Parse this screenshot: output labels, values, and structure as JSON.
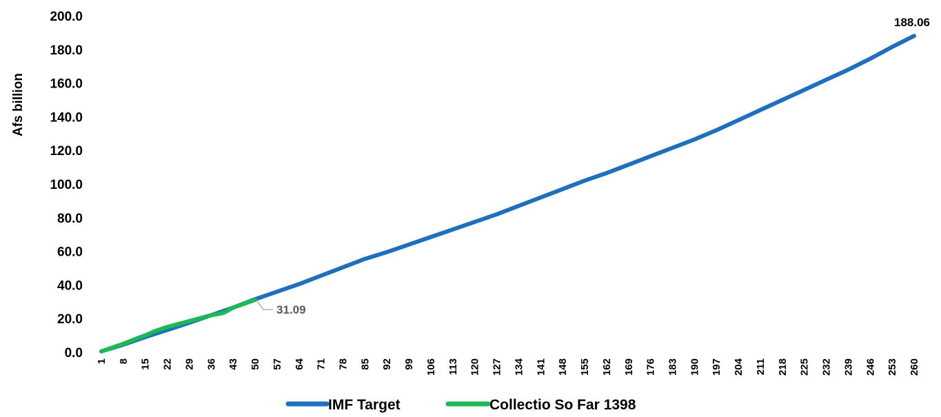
{
  "chart_data": {
    "type": "line",
    "ylabel": "Afs billion",
    "ylim": [
      0,
      200
    ],
    "xlim": [
      1,
      260
    ],
    "y_ticks": [
      "0.0",
      "20.0",
      "40.0",
      "60.0",
      "80.0",
      "100.0",
      "120.0",
      "140.0",
      "160.0",
      "180.0",
      "200.0"
    ],
    "x_ticks": [
      "1",
      "8",
      "15",
      "22",
      "29",
      "36",
      "43",
      "50",
      "57",
      "64",
      "71",
      "78",
      "85",
      "92",
      "99",
      "106",
      "113",
      "120",
      "127",
      "134",
      "141",
      "148",
      "155",
      "162",
      "169",
      "176",
      "183",
      "190",
      "197",
      "204",
      "211",
      "218",
      "225",
      "232",
      "239",
      "246",
      "253",
      "260"
    ],
    "grid": false,
    "legend_position": "bottom",
    "series": [
      {
        "name": "IMF Target",
        "color": "#1f6fbf",
        "x": [
          1,
          8,
          15,
          22,
          29,
          36,
          43,
          50,
          57,
          64,
          71,
          78,
          85,
          92,
          99,
          106,
          113,
          120,
          127,
          134,
          141,
          148,
          155,
          162,
          169,
          176,
          183,
          190,
          197,
          204,
          211,
          218,
          225,
          232,
          239,
          246,
          253,
          260
        ],
        "y": [
          0.5,
          4.5,
          9.0,
          13.2,
          17.5,
          22.0,
          26.5,
          31.5,
          36.0,
          40.5,
          45.5,
          50.5,
          55.5,
          59.5,
          64.0,
          68.5,
          73.0,
          77.5,
          82.0,
          87.0,
          92.0,
          97.0,
          102.0,
          106.5,
          111.5,
          116.5,
          121.5,
          126.5,
          132.0,
          138.0,
          144.0,
          150.0,
          156.0,
          162.0,
          168.0,
          174.5,
          181.5,
          188.06
        ],
        "end_label": "188.06"
      },
      {
        "name": "Collectio So Far 1398",
        "color": "#1db954",
        "x": [
          1,
          4,
          8,
          12,
          15,
          18,
          22,
          26,
          29,
          33,
          36,
          39,
          40,
          43,
          46,
          50
        ],
        "y": [
          0.5,
          2.5,
          5.0,
          8.0,
          10.0,
          12.5,
          15.0,
          17.0,
          18.5,
          20.5,
          22.0,
          23.0,
          23.5,
          26.5,
          28.5,
          31.09
        ],
        "end_label": "31.09"
      }
    ]
  }
}
